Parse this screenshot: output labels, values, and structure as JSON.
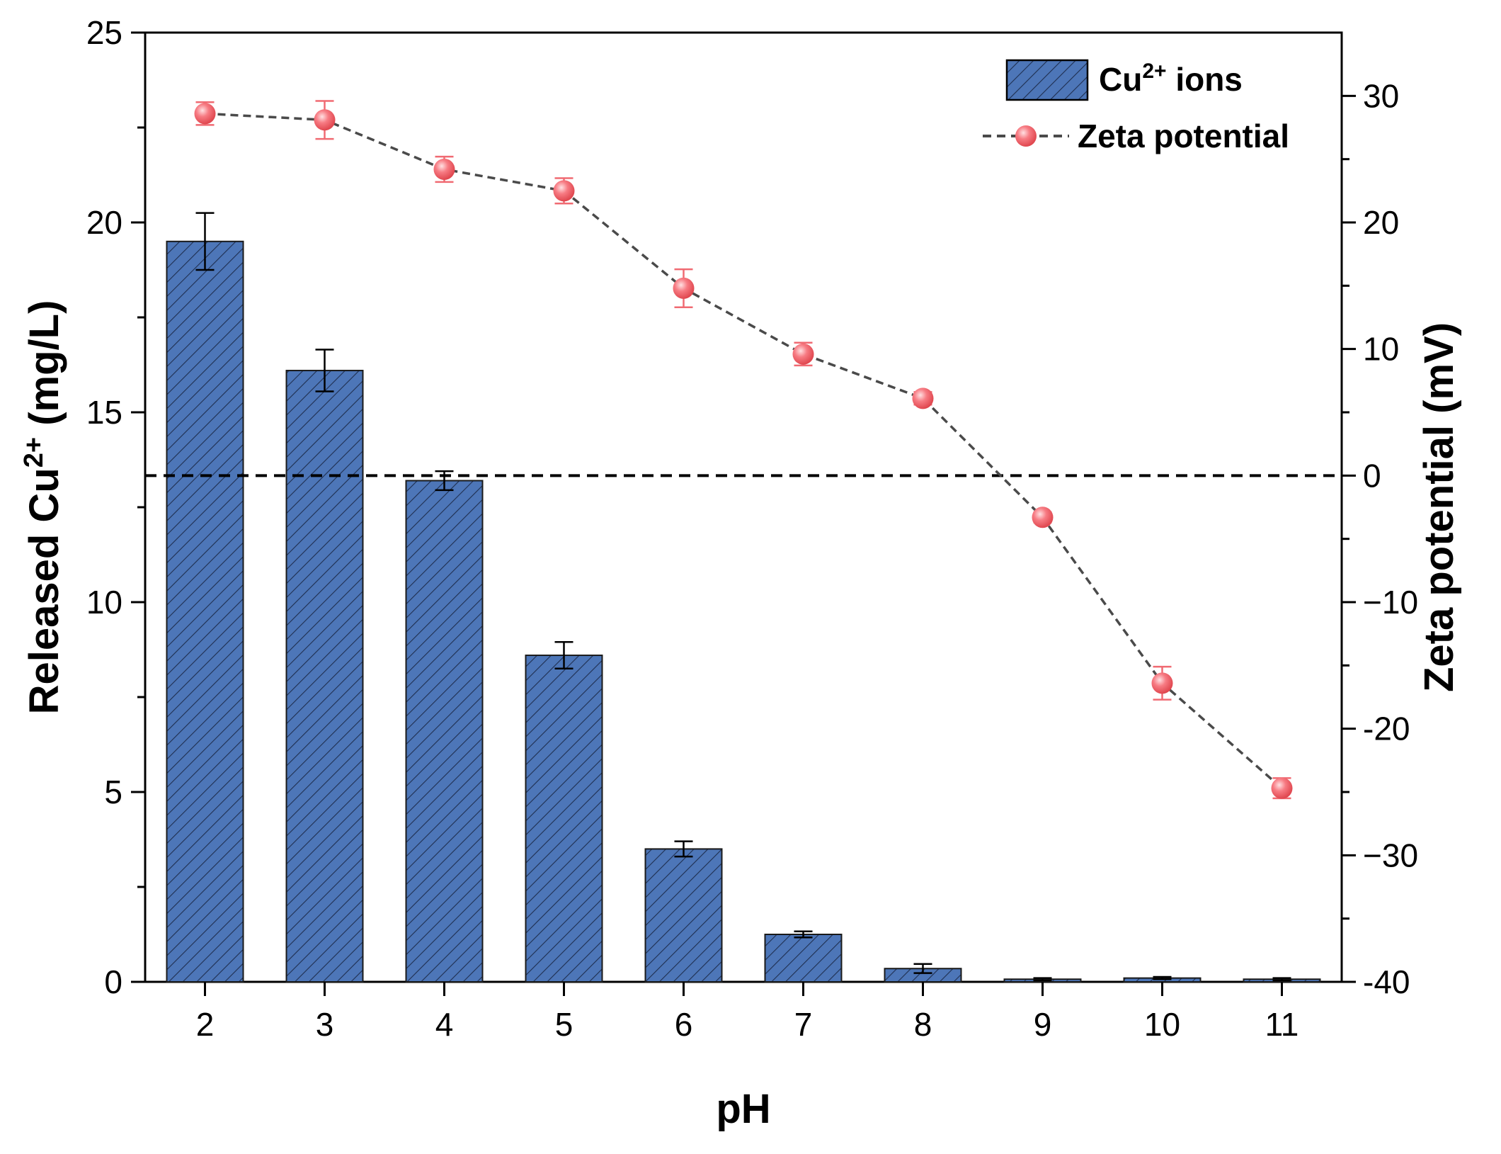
{
  "chart_data": {
    "type": "bar+line",
    "x": [
      2,
      3,
      4,
      5,
      6,
      7,
      8,
      9,
      10,
      11
    ],
    "xlabel": "pH",
    "ylabel_left": {
      "prefix": "Released Cu",
      "sup": "2+",
      "suffix": " (mg/L)"
    },
    "ylabel_right": "Zeta potential (mV)",
    "ylim_left": [
      0,
      25
    ],
    "yticks_left": [
      0,
      5,
      10,
      15,
      20,
      25
    ],
    "ylim_right": [
      -40,
      35
    ],
    "yticks_right": [
      -40,
      -30,
      -20,
      -10,
      0,
      10,
      20,
      30
    ],
    "yticks_right_labels": [
      "-40",
      "−30",
      "-20",
      "−10",
      "0",
      "10",
      "20",
      "30"
    ],
    "zero_line_right": 0,
    "series": [
      {
        "name": "Cu2+ ions",
        "legend_prefix": "Cu",
        "legend_sup": "2+",
        "legend_suffix": " ions",
        "type": "bar",
        "axis": "left",
        "values": [
          19.5,
          16.1,
          13.2,
          8.6,
          3.5,
          1.25,
          0.35,
          0.07,
          0.1,
          0.07
        ],
        "errors": [
          0.75,
          0.55,
          0.25,
          0.35,
          0.2,
          0.08,
          0.12,
          0.03,
          0.03,
          0.03
        ],
        "color": "#4d76b8"
      },
      {
        "name": "Zeta potential",
        "type": "line",
        "axis": "right",
        "values": [
          28.6,
          28.1,
          24.2,
          22.5,
          14.8,
          9.6,
          6.1,
          -3.3,
          -16.4,
          -24.7
        ],
        "errors": [
          0.9,
          1.5,
          1.0,
          1.0,
          1.5,
          0.9,
          0.5,
          0.4,
          1.3,
          0.8
        ],
        "color": "#f06a72",
        "line_color": "#4a4a4a"
      }
    ]
  }
}
